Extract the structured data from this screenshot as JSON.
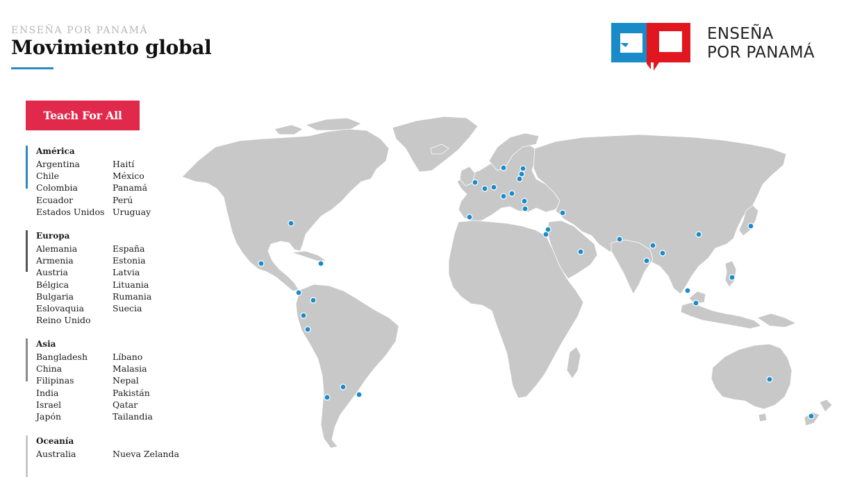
{
  "header": {
    "kicker": "ENSEÑA POR PANAMÁ",
    "title": "Movimiento global"
  },
  "logo": {
    "line1": "ENSEÑA",
    "line2": "POR PANAMÁ",
    "colors": {
      "blue": "#1a8bc9",
      "red": "#e1161e"
    }
  },
  "network_button": {
    "label": "Teach For All",
    "color": "#e0294b"
  },
  "regions": [
    {
      "name": "América",
      "bar_color": "#2a88c6",
      "col1": [
        "Argentina",
        "Chile",
        "Colombia",
        "Ecuador",
        "Estados Unidos"
      ],
      "col2": [
        "Haití",
        "México",
        "Panamá",
        "Perú",
        "Uruguay"
      ]
    },
    {
      "name": "Europa",
      "bar_color": "#555555",
      "col1": [
        "Alemania",
        "Armenia",
        "Austria",
        "Bélgica",
        "Bulgaria",
        "Eslovaquia",
        "Reino Unido"
      ],
      "col2": [
        "España",
        "Estonia",
        "Latvia",
        "Lituania",
        "Rumania",
        "Suecia"
      ]
    },
    {
      "name": "Asia",
      "bar_color": "#8a8a8a",
      "col1": [
        "Bangladesh",
        "China",
        "Filipinas",
        "India",
        "Israel",
        "Japón"
      ],
      "col2": [
        "Líbano",
        "Malasia",
        "Nepal",
        "Pakistán",
        "Qatar",
        "Tailandia"
      ]
    },
    {
      "name": "Oceanía",
      "bar_color": "#c8c8c8",
      "col1": [
        "Australia"
      ],
      "col2": [
        "Nueva Zelanda"
      ]
    }
  ],
  "map": {
    "land_color": "#c8c8c8",
    "marker_color": "#1a8bc9",
    "markers": [
      "Estados Unidos",
      "México",
      "Haití",
      "Panamá",
      "Colombia",
      "Ecuador",
      "Perú",
      "Chile",
      "Argentina",
      "Uruguay",
      "Reino Unido",
      "España",
      "Bélgica",
      "Alemania",
      "Austria",
      "Eslovaquia",
      "Suecia",
      "Estonia",
      "Latvia",
      "Lituania",
      "Rumania",
      "Bulgaria",
      "Armenia",
      "Líbano",
      "Israel",
      "Qatar",
      "Pakistán",
      "India",
      "Nepal",
      "Bangladesh",
      "China",
      "Japón",
      "Tailandia",
      "Malasia",
      "Filipinas",
      "Australia",
      "Nueva Zelanda"
    ]
  }
}
